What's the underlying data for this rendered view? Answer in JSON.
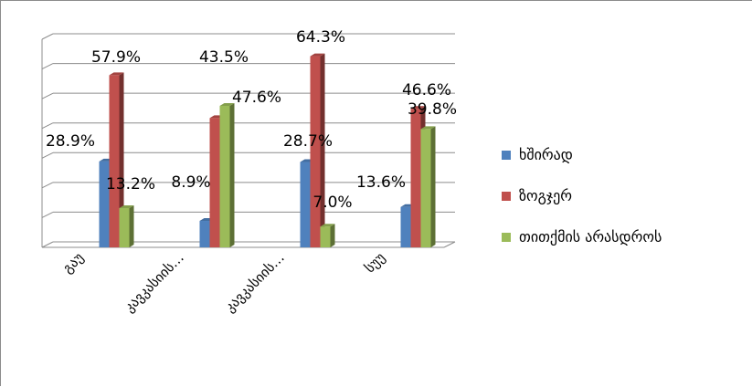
{
  "chart_data": {
    "type": "bar",
    "categories": [
      "გაუ",
      "კავკასიის…",
      "კავკასიის…",
      "სუუ"
    ],
    "series": [
      {
        "name": "ხშირად",
        "values": [
          28.9,
          8.9,
          28.7,
          13.6
        ],
        "color": "#4f81bd"
      },
      {
        "name": "ზოგჯერ",
        "values": [
          57.9,
          43.5,
          64.3,
          46.6
        ],
        "color": "#c0504d"
      },
      {
        "name": "თითქმის არასდროს",
        "values": [
          13.2,
          47.6,
          7.0,
          39.8
        ],
        "color": "#9bbb59"
      }
    ],
    "data_labels": [
      [
        "28.9%",
        "8.9%",
        "28.7%",
        "13.6%"
      ],
      [
        "57.9%",
        "43.5%",
        "64.3%",
        "46.6%"
      ],
      [
        "13.2%",
        "47.6%",
        "7.0%",
        "39.8%"
      ]
    ],
    "ylim": [
      0,
      70
    ],
    "grid": true,
    "legend_position": "right"
  }
}
